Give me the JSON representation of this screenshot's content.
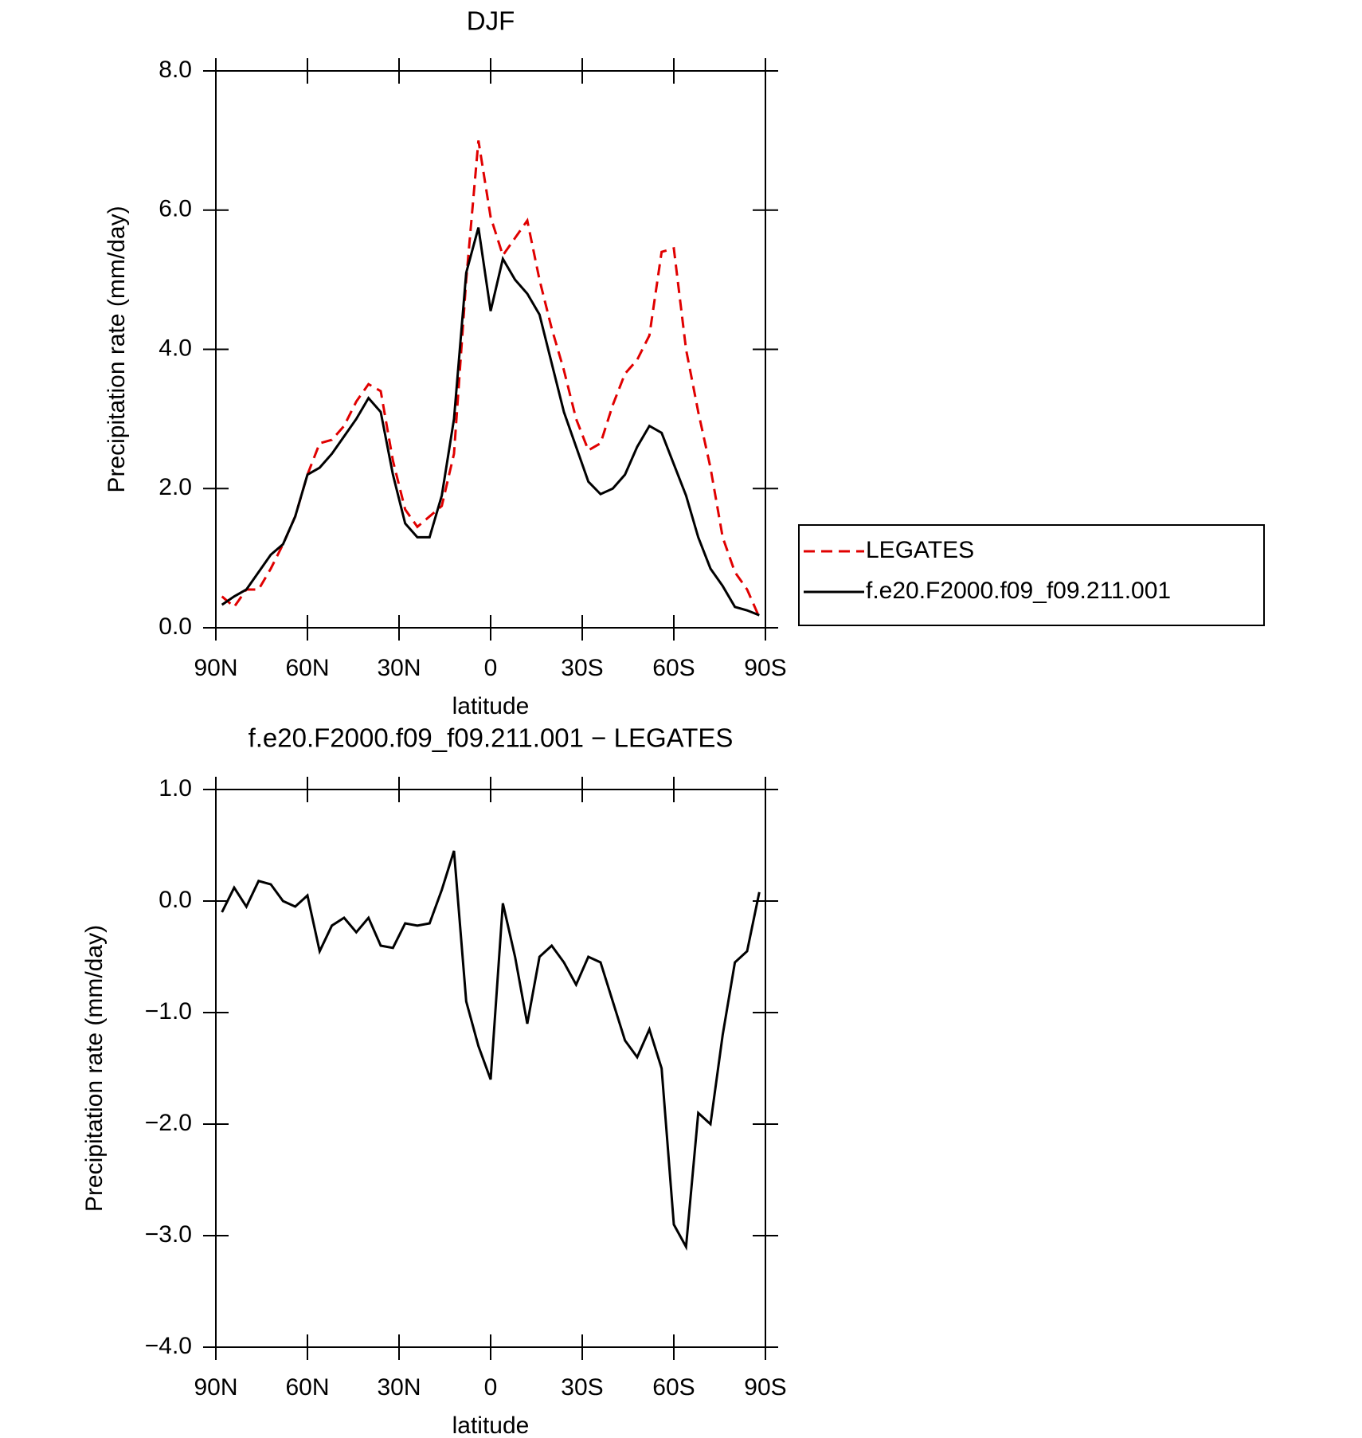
{
  "chart_data": [
    {
      "type": "line",
      "title": "DJF",
      "xlabel": "latitude",
      "ylabel": "Precipitation rate (mm/day)",
      "x": [
        88,
        84,
        80,
        76,
        72,
        68,
        64,
        60,
        56,
        52,
        48,
        44,
        40,
        36,
        32,
        28,
        24,
        20,
        16,
        12,
        8,
        4,
        0,
        -4,
        -8,
        -12,
        -16,
        -20,
        -24,
        -28,
        -32,
        -36,
        -40,
        -44,
        -48,
        -52,
        -56,
        -60,
        -64,
        -68,
        -72,
        -76,
        -80,
        -84,
        -88
      ],
      "series": [
        {
          "name": "LEGATES",
          "color": "#e00000",
          "dash": "dashed",
          "values": [
            0.45,
            0.3,
            0.55,
            0.55,
            0.85,
            1.2,
            1.6,
            2.2,
            2.65,
            2.7,
            2.9,
            3.25,
            3.5,
            3.4,
            2.4,
            1.7,
            1.45,
            1.6,
            1.75,
            2.5,
            5.0,
            7.0,
            5.9,
            5.35,
            5.6,
            5.85,
            5.0,
            4.3,
            3.7,
            3.0,
            2.55,
            2.65,
            3.2,
            3.65,
            3.85,
            4.2,
            5.4,
            5.45,
            4.0,
            3.1,
            2.3,
            1.3,
            0.8,
            0.55,
            0.15
          ]
        },
        {
          "name": "f.e20.F2000.f09_f09.211.001",
          "color": "#000000",
          "dash": "solid",
          "values": [
            0.33,
            0.45,
            0.55,
            0.8,
            1.05,
            1.2,
            1.6,
            2.2,
            2.3,
            2.5,
            2.75,
            3.0,
            3.3,
            3.1,
            2.2,
            1.5,
            1.3,
            1.3,
            1.9,
            3.0,
            5.1,
            5.75,
            4.55,
            5.3,
            5.0,
            4.8,
            4.5,
            3.8,
            3.1,
            2.6,
            2.1,
            1.92,
            2.0,
            2.2,
            2.6,
            2.9,
            2.8,
            2.35,
            1.9,
            1.3,
            0.85,
            0.6,
            0.3,
            0.25,
            0.18
          ]
        }
      ],
      "xlim": [
        90,
        -90
      ],
      "xticks": [
        {
          "value": 90,
          "label": "90N"
        },
        {
          "value": 60,
          "label": "60N"
        },
        {
          "value": 30,
          "label": "30N"
        },
        0,
        {
          "value": -30,
          "label": "30S"
        },
        {
          "value": -60,
          "label": "60S"
        },
        {
          "value": -90,
          "label": "90S"
        }
      ],
      "ylim": [
        0,
        8
      ],
      "yticks": [
        {
          "value": 0,
          "label": "0.0"
        },
        {
          "value": 2,
          "label": "2.0"
        },
        {
          "value": 4,
          "label": "4.0"
        },
        {
          "value": 6,
          "label": "6.0"
        },
        {
          "value": 8,
          "label": "8.0"
        }
      ],
      "legend": "outside-right",
      "grid": false
    },
    {
      "type": "line",
      "title": "f.e20.F2000.f09_f09.211.001 − LEGATES",
      "xlabel": "latitude",
      "ylabel": "Precipitation rate (mm/day)",
      "x": [
        88,
        84,
        80,
        76,
        72,
        68,
        64,
        60,
        56,
        52,
        48,
        44,
        40,
        36,
        32,
        28,
        24,
        20,
        16,
        12,
        8,
        4,
        0,
        -4,
        -8,
        -12,
        -16,
        -20,
        -24,
        -28,
        -32,
        -36,
        -40,
        -44,
        -48,
        -52,
        -56,
        -60,
        -64,
        -68,
        -72,
        -76,
        -80,
        -84,
        -88
      ],
      "color": "#000000",
      "values": [
        -0.1,
        0.12,
        -0.05,
        0.18,
        0.15,
        0.0,
        -0.05,
        0.05,
        -0.45,
        -0.22,
        -0.15,
        -0.28,
        -0.15,
        -0.4,
        -0.42,
        -0.2,
        -0.22,
        -0.2,
        0.1,
        0.45,
        -0.9,
        -1.3,
        -1.6,
        -0.02,
        -0.5,
        -1.1,
        -0.5,
        -0.4,
        -0.55,
        -0.75,
        -0.5,
        -0.55,
        -0.9,
        -1.25,
        -1.4,
        -1.15,
        -1.5,
        -2.9,
        -3.1,
        -1.9,
        -2.0,
        -1.2,
        -0.55,
        -0.45,
        0.08
      ],
      "xlim": [
        90,
        -90
      ],
      "xticks": [
        {
          "value": 90,
          "label": "90N"
        },
        {
          "value": 60,
          "label": "60N"
        },
        {
          "value": 30,
          "label": "30N"
        },
        0,
        {
          "value": -30,
          "label": "30S"
        },
        {
          "value": -60,
          "label": "60S"
        },
        {
          "value": -90,
          "label": "90S"
        }
      ],
      "ylim": [
        -4,
        1
      ],
      "yticks": [
        {
          "value": -4,
          "label": "−4.0"
        },
        {
          "value": -3,
          "label": "−3.0"
        },
        {
          "value": -2,
          "label": "−2.0"
        },
        {
          "value": -1,
          "label": "−1.0"
        },
        {
          "value": 0,
          "label": "0.0"
        },
        {
          "value": 1,
          "label": "1.0"
        }
      ],
      "grid": false
    }
  ]
}
